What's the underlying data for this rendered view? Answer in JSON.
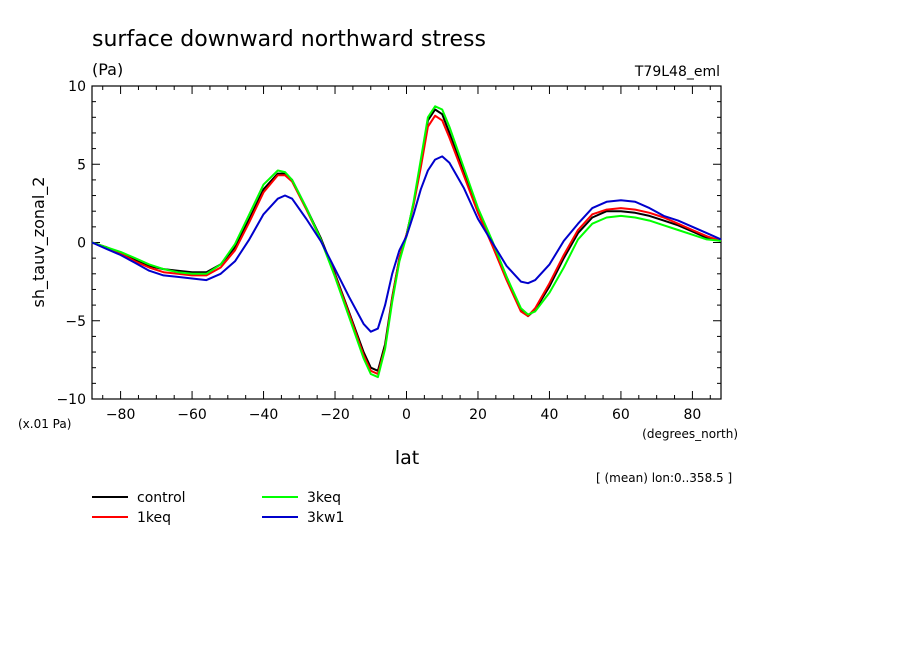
{
  "header": {
    "title": "surface downward northward stress",
    "units": "(Pa)",
    "model": "T79L48_eml"
  },
  "labels": {
    "scale_note": "(x.01 Pa)",
    "x_units": "(degrees_north)",
    "mean_note": "[ (mean) lon:0..358.5 ]"
  },
  "chart_data": {
    "type": "line",
    "title": "surface downward northward stress",
    "xlabel": "lat",
    "ylabel": "sh_tauv_zonal_2",
    "xlim": [
      -88,
      88
    ],
    "ylim": [
      -10,
      10
    ],
    "xticks": [
      -80,
      -60,
      -40,
      -20,
      0,
      20,
      40,
      60,
      80
    ],
    "yticks": [
      -10,
      -5,
      0,
      5,
      10
    ],
    "x": [
      -88,
      -84,
      -80,
      -76,
      -72,
      -68,
      -64,
      -60,
      -56,
      -52,
      -48,
      -44,
      -40,
      -36,
      -34,
      -32,
      -28,
      -24,
      -20,
      -16,
      -12,
      -10,
      -8,
      -6,
      -4,
      -2,
      0,
      2,
      4,
      6,
      8,
      10,
      12,
      16,
      20,
      24,
      28,
      32,
      34,
      36,
      40,
      44,
      48,
      52,
      56,
      60,
      64,
      68,
      72,
      76,
      80,
      84,
      88
    ],
    "legend_position": "bottom-left",
    "series": [
      {
        "name": "control",
        "color": "#000000",
        "values": [
          0.0,
          -0.3,
          -0.7,
          -1.1,
          -1.5,
          -1.7,
          -1.8,
          -1.9,
          -1.9,
          -1.4,
          -0.3,
          1.5,
          3.4,
          4.4,
          4.4,
          4.0,
          2.2,
          0.3,
          -2.0,
          -4.5,
          -7.0,
          -8.0,
          -8.2,
          -6.5,
          -3.5,
          -1.0,
          0.5,
          2.5,
          5.0,
          7.8,
          8.5,
          8.2,
          7.0,
          4.5,
          2.0,
          0.0,
          -2.2,
          -4.3,
          -4.7,
          -4.3,
          -2.8,
          -1.0,
          0.6,
          1.6,
          2.0,
          2.0,
          1.9,
          1.7,
          1.4,
          1.1,
          0.7,
          0.3,
          0.1
        ]
      },
      {
        "name": "1keq",
        "color": "#ff0000",
        "values": [
          0.0,
          -0.3,
          -0.7,
          -1.2,
          -1.6,
          -1.9,
          -2.0,
          -2.1,
          -2.1,
          -1.6,
          -0.5,
          1.3,
          3.2,
          4.3,
          4.3,
          3.9,
          2.1,
          0.2,
          -2.1,
          -4.6,
          -7.2,
          -8.2,
          -8.4,
          -6.7,
          -3.6,
          -1.0,
          0.5,
          2.4,
          4.8,
          7.4,
          8.1,
          7.8,
          6.7,
          4.3,
          1.9,
          -0.2,
          -2.4,
          -4.4,
          -4.7,
          -4.2,
          -2.6,
          -0.8,
          0.8,
          1.8,
          2.1,
          2.2,
          2.1,
          1.9,
          1.6,
          1.2,
          0.8,
          0.4,
          0.1
        ]
      },
      {
        "name": "3keq",
        "color": "#00ff00",
        "values": [
          0.0,
          -0.3,
          -0.6,
          -1.0,
          -1.4,
          -1.7,
          -1.9,
          -2.0,
          -2.0,
          -1.4,
          -0.1,
          1.8,
          3.7,
          4.6,
          4.5,
          4.0,
          2.2,
          0.2,
          -2.2,
          -4.8,
          -7.4,
          -8.4,
          -8.6,
          -6.8,
          -3.8,
          -1.2,
          0.4,
          2.6,
          5.3,
          8.0,
          8.7,
          8.5,
          7.4,
          4.8,
          2.2,
          0.1,
          -2.2,
          -4.2,
          -4.6,
          -4.4,
          -3.2,
          -1.6,
          0.2,
          1.2,
          1.6,
          1.7,
          1.6,
          1.4,
          1.1,
          0.8,
          0.5,
          0.2,
          0.1
        ]
      },
      {
        "name": "3kw1",
        "color": "#0000cc",
        "values": [
          0.0,
          -0.4,
          -0.8,
          -1.3,
          -1.8,
          -2.1,
          -2.2,
          -2.3,
          -2.4,
          -2.0,
          -1.2,
          0.2,
          1.8,
          2.8,
          3.0,
          2.8,
          1.5,
          0.1,
          -1.7,
          -3.5,
          -5.2,
          -5.7,
          -5.5,
          -4.0,
          -2.0,
          -0.5,
          0.4,
          1.8,
          3.4,
          4.6,
          5.3,
          5.5,
          5.1,
          3.5,
          1.5,
          0.0,
          -1.5,
          -2.5,
          -2.6,
          -2.4,
          -1.4,
          0.1,
          1.2,
          2.2,
          2.6,
          2.7,
          2.6,
          2.2,
          1.7,
          1.4,
          1.0,
          0.6,
          0.2
        ]
      }
    ]
  }
}
